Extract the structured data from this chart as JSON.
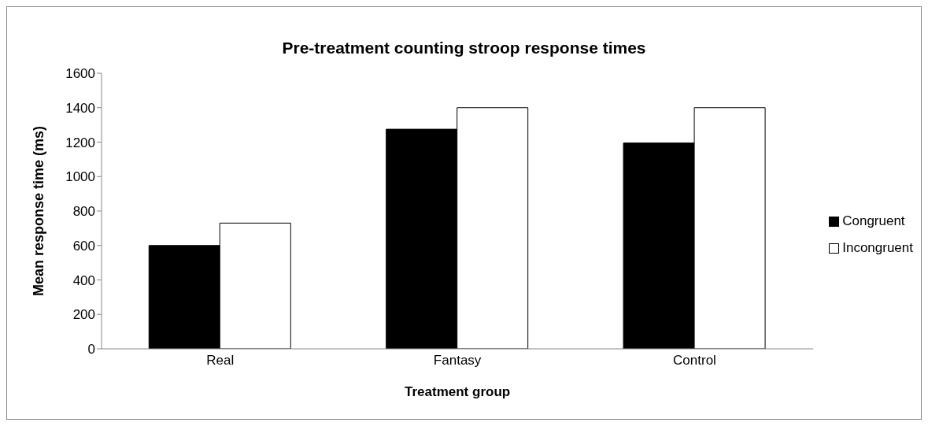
{
  "chart_data": {
    "type": "bar",
    "title": "Pre-treatment counting stroop response times",
    "xlabel": "Treatment group",
    "ylabel": "Mean response time (ms)",
    "categories": [
      "Real",
      "Fantasy",
      "Control"
    ],
    "series": [
      {
        "name": "Congruent",
        "color": "#000000",
        "values": [
          600,
          1275,
          1195
        ]
      },
      {
        "name": "Incongruent",
        "color": "#ffffff",
        "values": [
          730,
          1400,
          1400
        ]
      }
    ],
    "ylim": [
      0,
      1600
    ],
    "yticks": [
      0,
      200,
      400,
      600,
      800,
      1000,
      1200,
      1400,
      1600
    ],
    "grid": false,
    "legend": "right"
  }
}
